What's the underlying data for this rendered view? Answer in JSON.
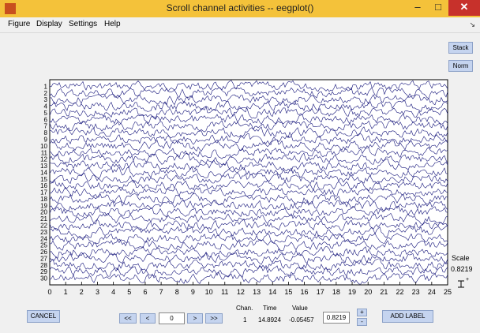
{
  "window": {
    "title": "Scroll channel activities -- eegplot()"
  },
  "menu": [
    {
      "label": "Figure"
    },
    {
      "label": "Display"
    },
    {
      "label": "Settings"
    },
    {
      "label": "Help"
    }
  ],
  "side_buttons": {
    "stack": "Stack",
    "norm": "Norm"
  },
  "plot": {
    "channels": [
      "1",
      "2",
      "3",
      "4",
      "5",
      "6",
      "7",
      "8",
      "9",
      "10",
      "11",
      "12",
      "13",
      "14",
      "15",
      "16",
      "17",
      "18",
      "19",
      "20",
      "21",
      "22",
      "23",
      "24",
      "25",
      "26",
      "27",
      "28",
      "29",
      "30"
    ],
    "x_ticks": [
      "0",
      "1",
      "2",
      "3",
      "4",
      "5",
      "6",
      "7",
      "8",
      "9",
      "10",
      "11",
      "12",
      "13",
      "14",
      "15",
      "16",
      "17",
      "18",
      "19",
      "20",
      "21",
      "22",
      "23",
      "24",
      "25"
    ],
    "trace_color": "#14147a"
  },
  "scale": {
    "label": "Scale",
    "value": "0.8219"
  },
  "controls": {
    "cancel": "CANCEL",
    "first": "<<",
    "prev": "<",
    "position": "0",
    "next": ">",
    "last": ">>",
    "chan_header": "Chan.",
    "time_header": "Time",
    "value_header": "Value",
    "chan_value": "1",
    "time_value": "14.8924",
    "value_value": "-0.05457",
    "spacing_value": "0.8219",
    "plus": "+",
    "minus": "-",
    "add_label": "ADD LABEL"
  }
}
